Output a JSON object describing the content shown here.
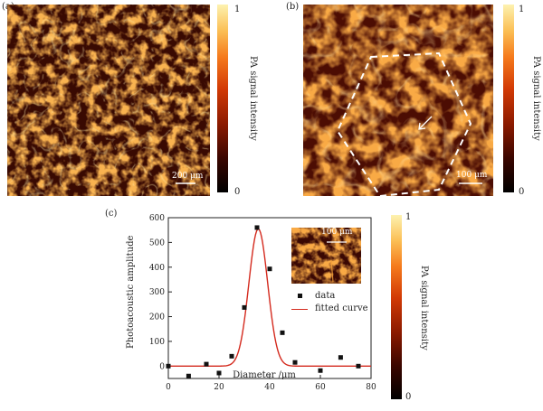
{
  "panels": {
    "a": {
      "label": "(a)",
      "scalebar": "200 μm"
    },
    "b": {
      "label": "(b)",
      "scalebar": "100 μm"
    },
    "c": {
      "label": "(c)",
      "inset_scalebar": "100 μm"
    }
  },
  "colorbar": {
    "label": "PA signal intensity",
    "max_label": "1",
    "min_label": "0",
    "colors": [
      "#000000",
      "#3a0600",
      "#8a1a00",
      "#d23a05",
      "#f57a1c",
      "#fbbf55",
      "#fdf2b0"
    ]
  },
  "chart_data": {
    "type": "scatter",
    "xlabel": "Diameter /μm",
    "ylabel": "Photoacoustic amplitude",
    "xlim": [
      0,
      80
    ],
    "ylim": [
      -50,
      600
    ],
    "xticks": [
      0,
      20,
      40,
      60,
      80
    ],
    "yticks": [
      0,
      100,
      200,
      300,
      400,
      500,
      600
    ],
    "series": [
      {
        "name": "data",
        "x": [
          0,
          8,
          15,
          20,
          25,
          30,
          35,
          40,
          45,
          50,
          60,
          68,
          75
        ],
        "y": [
          0,
          -40,
          8,
          -28,
          40,
          237,
          560,
          393,
          135,
          15,
          -18,
          35,
          0
        ]
      },
      {
        "name": "fitted curve",
        "model": "gaussian",
        "center": 35.5,
        "sigma": 3.7,
        "amplitude": 555,
        "baseline": 0
      }
    ],
    "legend": [
      {
        "name": "data"
      },
      {
        "name": "fitted curve"
      }
    ]
  }
}
